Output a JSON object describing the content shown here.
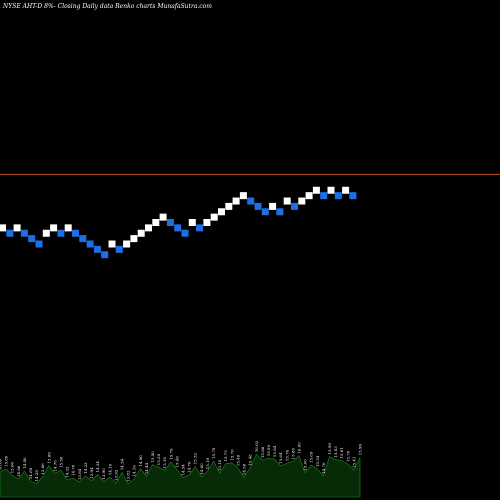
{
  "chart_data": {
    "type": "renko",
    "title": "NYSE AHT-D 8%-   Closing Daily data  Renko  charts MunafaSutra.com",
    "colors": {
      "background": "#000000",
      "up_brick": "#ffffff",
      "down_brick": "#1e6ee6",
      "reference_line": "#c8501e",
      "volume_area": "#062b06",
      "volume_line": "#1f8a1f",
      "text": "#ffffff"
    },
    "reference_level": 16.75,
    "y_range": [
      5.0,
      22.5
    ],
    "bricks": [
      {
        "i": 0,
        "level": 14.76,
        "dir": "up"
      },
      {
        "i": 1,
        "level": 14.56,
        "dir": "down"
      },
      {
        "i": 2,
        "level": 14.76,
        "dir": "up"
      },
      {
        "i": 3,
        "level": 14.56,
        "dir": "down"
      },
      {
        "i": 4,
        "level": 14.36,
        "dir": "down"
      },
      {
        "i": 5,
        "level": 14.16,
        "dir": "down"
      },
      {
        "i": 6,
        "level": 14.56,
        "dir": "up"
      },
      {
        "i": 7,
        "level": 14.76,
        "dir": "up"
      },
      {
        "i": 8,
        "level": 14.56,
        "dir": "down"
      },
      {
        "i": 9,
        "level": 14.76,
        "dir": "up"
      },
      {
        "i": 10,
        "level": 14.56,
        "dir": "down"
      },
      {
        "i": 11,
        "level": 14.36,
        "dir": "down"
      },
      {
        "i": 12,
        "level": 14.16,
        "dir": "down"
      },
      {
        "i": 13,
        "level": 13.96,
        "dir": "down"
      },
      {
        "i": 14,
        "level": 13.76,
        "dir": "down"
      },
      {
        "i": 15,
        "level": 14.16,
        "dir": "up"
      },
      {
        "i": 16,
        "level": 13.96,
        "dir": "down"
      },
      {
        "i": 17,
        "level": 14.16,
        "dir": "up"
      },
      {
        "i": 18,
        "level": 14.36,
        "dir": "up"
      },
      {
        "i": 19,
        "level": 14.56,
        "dir": "up"
      },
      {
        "i": 20,
        "level": 14.76,
        "dir": "up"
      },
      {
        "i": 21,
        "level": 14.96,
        "dir": "up"
      },
      {
        "i": 22,
        "level": 15.16,
        "dir": "up"
      },
      {
        "i": 23,
        "level": 14.96,
        "dir": "down"
      },
      {
        "i": 24,
        "level": 14.76,
        "dir": "down"
      },
      {
        "i": 25,
        "level": 14.56,
        "dir": "down"
      },
      {
        "i": 26,
        "level": 14.96,
        "dir": "up"
      },
      {
        "i": 27,
        "level": 14.76,
        "dir": "down"
      },
      {
        "i": 28,
        "level": 14.96,
        "dir": "up"
      },
      {
        "i": 29,
        "level": 15.16,
        "dir": "up"
      },
      {
        "i": 30,
        "level": 15.36,
        "dir": "up"
      },
      {
        "i": 31,
        "level": 15.56,
        "dir": "up"
      },
      {
        "i": 32,
        "level": 15.76,
        "dir": "up"
      },
      {
        "i": 33,
        "level": 15.96,
        "dir": "up"
      },
      {
        "i": 34,
        "level": 15.76,
        "dir": "down"
      },
      {
        "i": 35,
        "level": 15.56,
        "dir": "down"
      },
      {
        "i": 36,
        "level": 15.36,
        "dir": "down"
      },
      {
        "i": 37,
        "level": 15.56,
        "dir": "up"
      },
      {
        "i": 38,
        "level": 15.36,
        "dir": "down"
      },
      {
        "i": 39,
        "level": 15.76,
        "dir": "up"
      },
      {
        "i": 40,
        "level": 15.56,
        "dir": "down"
      },
      {
        "i": 41,
        "level": 15.76,
        "dir": "up"
      },
      {
        "i": 42,
        "level": 15.96,
        "dir": "up"
      },
      {
        "i": 43,
        "level": 16.16,
        "dir": "up"
      },
      {
        "i": 44,
        "level": 15.96,
        "dir": "down"
      },
      {
        "i": 45,
        "level": 16.16,
        "dir": "up"
      },
      {
        "i": 46,
        "level": 15.96,
        "dir": "down"
      },
      {
        "i": 47,
        "level": 16.16,
        "dir": "up"
      },
      {
        "i": 48,
        "level": 15.96,
        "dir": "down"
      }
    ],
    "volume_labels": [
      "16.00",
      "15.80",
      "15.60",
      "14.86",
      "14.40",
      "14.69",
      "14.28",
      "13.86",
      "15.86",
      "14.76",
      "15.56",
      "14.32",
      "14.76",
      "13.84",
      "14.23",
      "13.94",
      "14.34",
      "13.90",
      "14.10",
      "13.92",
      "14.54",
      "13.82",
      "14.10",
      "14.90",
      "14.44",
      "15.40",
      "15.29",
      "15.10",
      "15.79",
      "15.46",
      "14.54",
      "14.76",
      "15.52",
      "14.60",
      "15.19",
      "15.79",
      "15.10",
      "15.75",
      "15.76",
      "15.48",
      "14.58",
      "15.48",
      "16.02",
      "15.88",
      "15.95",
      "15.94",
      "15.64",
      "15.76",
      "15.80",
      "16.00",
      "15.00",
      "15.69",
      "15.54",
      "14.76",
      "15.99",
      "15.83",
      "15.81",
      "15.70",
      "15.41",
      "15.99"
    ],
    "volume_values": [
      0.55,
      0.62,
      0.48,
      0.4,
      0.58,
      0.35,
      0.3,
      0.45,
      0.7,
      0.52,
      0.6,
      0.38,
      0.42,
      0.33,
      0.47,
      0.36,
      0.5,
      0.34,
      0.44,
      0.31,
      0.55,
      0.29,
      0.41,
      0.63,
      0.46,
      0.72,
      0.66,
      0.59,
      0.78,
      0.61,
      0.43,
      0.49,
      0.68,
      0.45,
      0.57,
      0.8,
      0.53,
      0.74,
      0.76,
      0.64,
      0.44,
      0.65,
      0.95,
      0.82,
      0.86,
      0.84,
      0.69,
      0.75,
      0.79,
      0.92,
      0.54,
      0.71,
      0.62,
      0.47,
      0.9,
      0.83,
      0.81,
      0.73,
      0.6,
      0.88
    ]
  }
}
